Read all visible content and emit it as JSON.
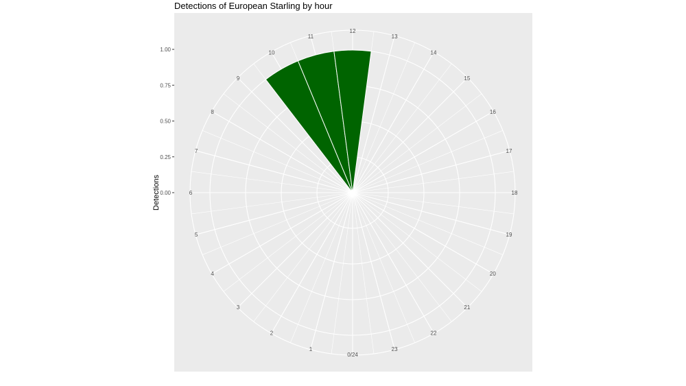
{
  "chart_data": {
    "type": "polar-bar",
    "title": "Detections of European Starling by hour",
    "ylabel": "Detections",
    "xlabel": "",
    "yticks": [
      "0.00",
      "0.25",
      "0.50",
      "0.75",
      "1.00"
    ],
    "ylim": [
      0,
      1
    ],
    "hour_labels": [
      "0/24",
      "1",
      "2",
      "3",
      "4",
      "5",
      "6",
      "7",
      "8",
      "9",
      "10",
      "11",
      "12",
      "13",
      "14",
      "15",
      "16",
      "17",
      "18",
      "19",
      "20",
      "21",
      "22",
      "23"
    ],
    "bars": [
      {
        "hour": 10,
        "value": 1
      },
      {
        "hour": 11,
        "value": 1
      },
      {
        "hour": 12,
        "value": 1
      }
    ],
    "bar_color": "#006400",
    "panel_background": "#ebebeb",
    "grid_color": "#ffffff",
    "grid": true
  }
}
